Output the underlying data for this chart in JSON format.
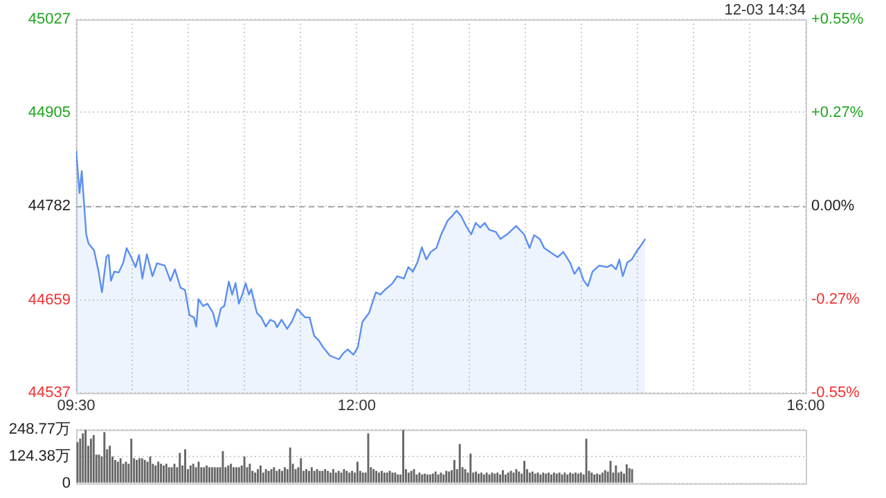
{
  "chart_data": [
    {
      "type": "area",
      "annotations": [
        "12-03 14:34"
      ],
      "x": [
        9.5,
        9.53,
        9.55,
        9.59,
        9.61,
        9.66,
        9.7,
        9.73,
        9.77,
        9.79,
        9.81,
        9.84,
        9.88,
        9.92,
        9.95,
        9.99,
        10.03,
        10.06,
        10.09,
        10.13,
        10.18,
        10.22,
        10.29,
        10.34,
        10.38,
        10.43,
        10.47,
        10.51,
        10.55,
        10.57,
        10.59,
        10.63,
        10.67,
        10.72,
        10.75,
        10.79,
        10.82,
        10.86,
        10.89,
        10.92,
        10.95,
        10.98,
        11.01,
        11.04,
        11.06,
        11.11,
        11.15,
        11.19,
        11.23,
        11.27,
        11.29,
        11.33,
        11.38,
        11.42,
        11.47,
        11.54,
        11.58,
        11.62,
        11.66,
        11.7,
        11.76,
        11.84,
        11.88,
        11.92,
        11.97,
        12.01,
        12.05,
        12.11,
        12.17,
        12.21,
        12.25,
        12.32,
        12.36,
        12.42,
        12.46,
        12.5,
        12.54,
        12.58,
        12.62,
        12.66,
        12.71,
        12.75,
        12.81,
        12.85,
        12.89,
        12.93,
        12.97,
        13.02,
        13.06,
        13.1,
        13.14,
        13.18,
        13.24,
        13.28,
        13.34,
        13.42,
        13.49,
        13.54,
        13.58,
        13.63,
        13.67,
        13.73,
        13.79,
        13.84,
        13.9,
        13.94,
        13.98,
        14.02,
        14.06,
        14.1,
        14.16,
        14.23,
        14.27,
        14.31,
        14.34,
        14.37,
        14.41,
        14.45,
        14.5,
        14.53,
        14.57
      ],
      "series": [
        {
          "color": "#5b8ff0",
          "values": [
            44855,
            44799,
            44828,
            44745,
            44733,
            44724,
            44696,
            44669,
            44716,
            44718,
            44684,
            44696,
            44695,
            44708,
            44727,
            44715,
            44702,
            44718,
            44687,
            44719,
            44690,
            44707,
            44704,
            44684,
            44699,
            44675,
            44672,
            44639,
            44636,
            44624,
            44660,
            44651,
            44654,
            44642,
            44624,
            44648,
            44651,
            44683,
            44666,
            44681,
            44654,
            44666,
            44681,
            44666,
            44673,
            44642,
            44636,
            44624,
            44633,
            44630,
            44623,
            44633,
            44621,
            44630,
            44647,
            44636,
            44636,
            44612,
            44606,
            44597,
            44586,
            44581,
            44589,
            44594,
            44587,
            44597,
            44630,
            44642,
            44669,
            44666,
            44672,
            44681,
            44690,
            44687,
            44702,
            44696,
            44708,
            44728,
            44712,
            44722,
            44727,
            44744,
            44763,
            44769,
            44776,
            44769,
            44757,
            44745,
            44760,
            44754,
            44760,
            44751,
            44748,
            44739,
            44745,
            44756,
            44745,
            44727,
            44744,
            44739,
            44727,
            44721,
            44715,
            44722,
            44708,
            44693,
            44702,
            44685,
            44677,
            44696,
            44704,
            44702,
            44705,
            44699,
            44712,
            44690,
            44708,
            44712,
            44724,
            44730,
            44739
          ]
        }
      ],
      "xlim": [
        9.5,
        16
      ],
      "xticks": [
        {
          "value": 9.5,
          "label": "09:30"
        },
        {
          "value": 10,
          "label": null
        },
        {
          "value": 10.5,
          "label": null
        },
        {
          "value": 11,
          "label": null
        },
        {
          "value": 11.5,
          "label": null
        },
        {
          "value": 12,
          "label": "12:00"
        },
        {
          "value": 12.5,
          "label": null
        },
        {
          "value": 13,
          "label": null
        },
        {
          "value": 13.5,
          "label": null
        },
        {
          "value": 14,
          "label": null
        },
        {
          "value": 14.5,
          "label": null
        },
        {
          "value": 15,
          "label": null
        },
        {
          "value": 15.5,
          "label": null
        },
        {
          "value": 16,
          "label": "16:00"
        }
      ],
      "ylim": [
        44537,
        45027
      ],
      "yticks": [
        44537,
        44659,
        44782,
        44905,
        45027
      ],
      "y2lim": [
        -0.55,
        0.55
      ],
      "y2ticks": [
        {
          "value": -0.55,
          "label": "-0.55%"
        },
        {
          "value": -0.275,
          "label": "-0.27%"
        },
        {
          "value": 0,
          "label": "0.00%"
        },
        {
          "value": 0.275,
          "label": "+0.27%"
        },
        {
          "value": 0.55,
          "label": "+0.55%"
        }
      ],
      "ref_lines": [
        {
          "axis": "y",
          "value": 44782,
          "color": "#aaaaaa",
          "line_style": "dashed"
        }
      ],
      "grid": true,
      "legend": false,
      "marker": "none"
    },
    {
      "type": "bar",
      "color": "#666666",
      "ylim": [
        0,
        248.77
      ],
      "yticks": [
        0,
        {
          "value": 124.38,
          "label": "124.38万"
        },
        {
          "value": 248.77,
          "label": "248.77万"
        }
      ],
      "grid": "y",
      "tick_labels": "y",
      "legend": false,
      "categories": [
        null,
        null,
        null,
        null,
        null,
        null,
        null,
        null,
        null,
        null,
        null,
        null,
        null,
        null,
        null,
        null,
        null,
        null,
        null,
        null,
        null,
        null,
        null,
        null,
        null,
        null,
        null,
        null,
        null,
        null,
        null,
        null,
        null,
        null,
        null,
        null,
        null,
        null,
        null,
        null,
        null,
        null,
        null,
        null,
        null,
        null,
        null,
        null,
        null,
        null,
        null,
        null,
        null,
        null,
        null,
        null,
        null,
        null,
        null,
        null,
        null,
        null,
        null,
        null,
        null,
        null,
        null,
        null,
        null,
        null,
        null,
        null,
        null,
        null,
        null,
        null,
        null,
        null,
        null,
        null,
        null,
        null,
        null,
        null,
        null,
        null,
        null,
        null,
        null,
        null,
        null,
        null,
        null,
        null,
        null,
        null,
        null,
        null,
        null,
        null,
        null,
        null,
        null,
        null,
        null,
        null,
        null,
        null,
        null,
        null,
        null,
        null,
        null,
        null,
        null,
        null,
        null,
        null,
        null,
        null,
        null,
        null,
        null,
        null,
        null,
        null,
        null,
        null,
        null,
        null,
        null,
        null,
        null,
        null,
        null,
        null,
        null,
        null,
        null,
        null,
        null,
        null,
        null,
        null,
        null,
        null,
        null,
        null,
        null,
        null,
        null,
        null,
        null,
        null,
        null,
        null,
        null,
        null,
        null,
        null,
        null,
        null,
        null,
        null,
        null,
        null,
        null,
        null,
        null,
        null,
        null,
        null,
        null,
        null,
        null,
        null,
        null,
        null,
        null,
        null,
        null,
        null,
        null,
        null,
        null,
        null,
        null,
        null,
        null,
        null,
        null,
        null,
        null,
        null,
        null,
        null,
        null,
        null,
        null,
        null,
        null,
        null,
        null,
        null,
        null,
        null,
        null,
        null,
        null,
        null,
        null,
        null,
        null,
        null,
        null,
        null,
        null,
        null,
        null,
        null,
        null,
        null,
        null,
        null,
        null,
        null,
        null,
        null,
        null,
        null,
        null,
        null,
        null,
        null,
        null,
        null,
        null,
        null,
        null,
        null,
        null,
        null,
        null,
        null,
        null,
        null,
        null,
        null,
        null,
        null,
        null,
        null,
        null,
        null,
        null,
        null,
        null,
        null,
        null,
        null,
        null,
        null,
        null,
        null,
        null,
        null,
        null,
        null,
        null,
        null,
        null
      ],
      "values": [
        191,
        207,
        232,
        248,
        174,
        207,
        224,
        133,
        133,
        124,
        237,
        158,
        174,
        124,
        108,
        100,
        116,
        91,
        100,
        91,
        207,
        116,
        108,
        116,
        116,
        108,
        100,
        124,
        91,
        83,
        100,
        91,
        83,
        91,
        75,
        75,
        91,
        75,
        141,
        83,
        158,
        66,
        83,
        91,
        75,
        100,
        75,
        75,
        83,
        75,
        75,
        75,
        75,
        75,
        149,
        75,
        83,
        91,
        75,
        75,
        75,
        83,
        124,
        75,
        91,
        58,
        50,
        66,
        83,
        50,
        66,
        58,
        66,
        75,
        58,
        66,
        58,
        75,
        66,
        166,
        91,
        66,
        75,
        116,
        58,
        66,
        58,
        75,
        58,
        66,
        58,
        58,
        66,
        58,
        50,
        66,
        50,
        58,
        50,
        66,
        58,
        50,
        58,
        50,
        100,
        58,
        50,
        50,
        232,
        75,
        66,
        58,
        50,
        58,
        50,
        50,
        58,
        50,
        50,
        41,
        41,
        248,
        66,
        50,
        58,
        66,
        41,
        50,
        41,
        45,
        41,
        41,
        45,
        55,
        41,
        50,
        41,
        58,
        55,
        61,
        108,
        66,
        182,
        75,
        66,
        50,
        138,
        50,
        55,
        45,
        50,
        41,
        50,
        41,
        50,
        45,
        50,
        41,
        61,
        41,
        50,
        58,
        50,
        66,
        55,
        45,
        104,
        66,
        50,
        55,
        45,
        50,
        41,
        50,
        45,
        50,
        41,
        50,
        45,
        50,
        41,
        50,
        41,
        50,
        45,
        50,
        45,
        50,
        41,
        207,
        58,
        50,
        41,
        45,
        41,
        50,
        61,
        55,
        104,
        50,
        83,
        50,
        55,
        45,
        88,
        71,
        66,
        null,
        null,
        null,
        null,
        null,
        null,
        null,
        null,
        null,
        null,
        null,
        null,
        null,
        null,
        null,
        null,
        null,
        null,
        null,
        null,
        null,
        null,
        null,
        null,
        null,
        null,
        null,
        null,
        null,
        null,
        null,
        null,
        null,
        null,
        null,
        null,
        null,
        null,
        null,
        null,
        null,
        null,
        null,
        null,
        null,
        null,
        null,
        null,
        null,
        null,
        null,
        null,
        null,
        null,
        null,
        null,
        null,
        null,
        null,
        null,
        null,
        null,
        null,
        null
      ]
    }
  ]
}
